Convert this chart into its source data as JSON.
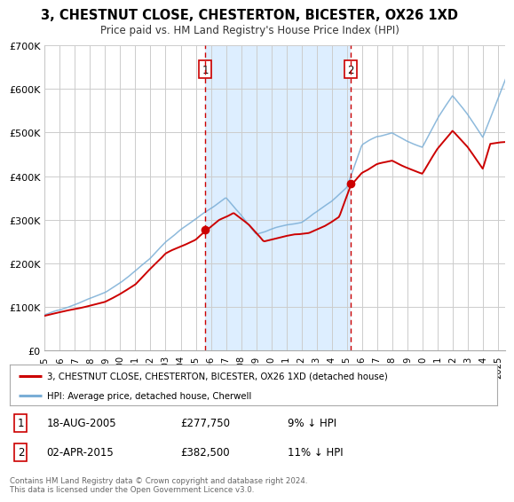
{
  "title": "3, CHESTNUT CLOSE, CHESTERTON, BICESTER, OX26 1XD",
  "subtitle": "Price paid vs. HM Land Registry's House Price Index (HPI)",
  "ylim": [
    0,
    700000
  ],
  "xlim_start": 1995.0,
  "xlim_end": 2025.5,
  "yticks": [
    0,
    100000,
    200000,
    300000,
    400000,
    500000,
    600000,
    700000
  ],
  "ytick_labels": [
    "£0",
    "£100K",
    "£200K",
    "£300K",
    "£400K",
    "£500K",
    "£600K",
    "£700K"
  ],
  "xticks": [
    1995,
    1996,
    1997,
    1998,
    1999,
    2000,
    2001,
    2002,
    2003,
    2004,
    2005,
    2006,
    2007,
    2008,
    2009,
    2010,
    2011,
    2012,
    2013,
    2014,
    2015,
    2016,
    2017,
    2018,
    2019,
    2020,
    2021,
    2022,
    2023,
    2024,
    2025
  ],
  "sale1_x": 2005.63,
  "sale1_y": 277750,
  "sale2_x": 2015.25,
  "sale2_y": 382500,
  "hpi_color": "#7aaed6",
  "price_color": "#cc0000",
  "shading_color": "#ddeeff",
  "background_color": "#ffffff",
  "grid_color": "#cccccc",
  "legend_line1": "3, CHESTNUT CLOSE, CHESTERTON, BICESTER, OX26 1XD (detached house)",
  "legend_line2": "HPI: Average price, detached house, Cherwell",
  "annotation1_label": "1",
  "annotation1_date": "18-AUG-2005",
  "annotation1_price": "£277,750",
  "annotation1_hpi": "9% ↓ HPI",
  "annotation2_label": "2",
  "annotation2_date": "02-APR-2015",
  "annotation2_price": "£382,500",
  "annotation2_hpi": "11% ↓ HPI",
  "footer": "Contains HM Land Registry data © Crown copyright and database right 2024.\nThis data is licensed under the Open Government Licence v3.0.",
  "hpi_key_years": [
    1995.0,
    1996.0,
    1997.0,
    1998.0,
    1999.0,
    2000.0,
    2001.0,
    2002.0,
    2003.0,
    2004.0,
    2005.0,
    2006.0,
    2007.0,
    2008.0,
    2009.0,
    2010.0,
    2011.0,
    2012.0,
    2013.0,
    2014.0,
    2015.0,
    2016.0,
    2017.0,
    2018.0,
    2019.0,
    2020.0,
    2021.0,
    2022.0,
    2023.0,
    2024.0,
    2025.5
  ],
  "hpi_key_vals": [
    82000,
    92000,
    108000,
    124000,
    140000,
    162000,
    188000,
    218000,
    255000,
    285000,
    308000,
    332000,
    358000,
    318000,
    272000,
    282000,
    292000,
    298000,
    318000,
    343000,
    375000,
    472000,
    492000,
    502000,
    482000,
    468000,
    532000,
    582000,
    538000,
    488000,
    620000
  ],
  "price_key_years": [
    1995.0,
    1997.0,
    1999.0,
    2001.0,
    2003.0,
    2005.0,
    2005.63,
    2006.5,
    2007.5,
    2008.5,
    2009.5,
    2010.5,
    2011.5,
    2012.5,
    2013.5,
    2014.5,
    2015.25,
    2016.0,
    2017.0,
    2018.0,
    2019.0,
    2020.0,
    2021.0,
    2022.0,
    2023.0,
    2024.0,
    2024.5,
    2025.5
  ],
  "price_key_vals": [
    80000,
    98000,
    118000,
    155000,
    225000,
    258000,
    277750,
    302000,
    320000,
    290000,
    248000,
    258000,
    268000,
    272000,
    288000,
    310000,
    382500,
    415000,
    435000,
    445000,
    430000,
    415000,
    472000,
    515000,
    478000,
    430000,
    488000,
    490000
  ]
}
